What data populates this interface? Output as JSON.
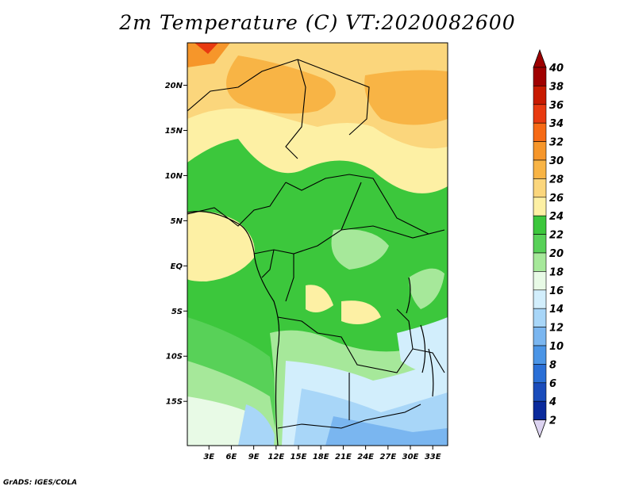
{
  "title": "2m Temperature (C) VT:2020082600",
  "footer": "GrADS: IGES/COLA",
  "map": {
    "lat_labels": [
      "20N",
      "15N",
      "10N",
      "5N",
      "EQ",
      "5S",
      "10S",
      "15S"
    ],
    "lat_values": [
      20,
      15,
      10,
      5,
      0,
      -5,
      -10,
      -15
    ],
    "lon_labels": [
      "3E",
      "6E",
      "9E",
      "12E",
      "15E",
      "18E",
      "21E",
      "24E",
      "27E",
      "30E",
      "33E"
    ],
    "lon_values": [
      3,
      6,
      9,
      12,
      15,
      18,
      21,
      24,
      27,
      30,
      33
    ],
    "lat_range": [
      -19.9,
      24.7
    ],
    "lon_range": [
      0.1,
      35.0
    ]
  },
  "colorbar": {
    "levels": [
      "40",
      "38",
      "36",
      "34",
      "32",
      "30",
      "28",
      "26",
      "24",
      "22",
      "20",
      "18",
      "16",
      "14",
      "12",
      "10",
      "8",
      "6",
      "4",
      "2"
    ],
    "colors": [
      "#a00000",
      "#c81a00",
      "#e83a10",
      "#f66a15",
      "#f6962a",
      "#f8b445",
      "#fbd67c",
      "#fdf0a4",
      "#3cc73c",
      "#58d158",
      "#a6e89a",
      "#e8fae6",
      "#d2eefc",
      "#a8d6f8",
      "#7ab6f0",
      "#4b95e6",
      "#2a6fd6",
      "#1a4cbb",
      "#0a2a9c"
    ],
    "top_color": "#9c0000",
    "bottom_color": "#dcd3f0"
  }
}
